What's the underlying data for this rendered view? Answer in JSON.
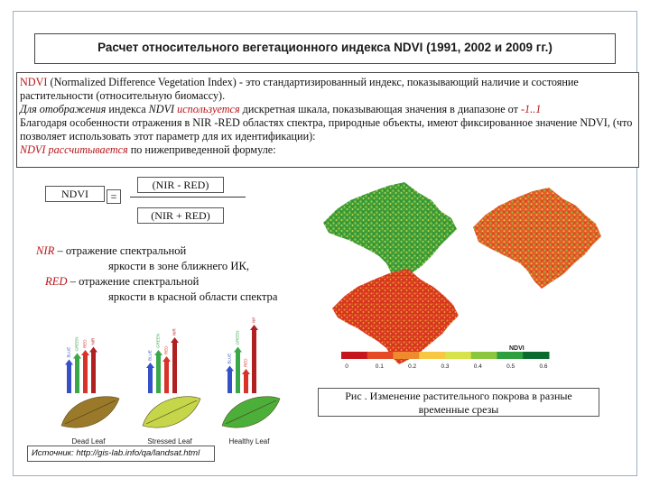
{
  "title": "Расчет относительного вегетационного индекса NDVI (1991,  2002 и 2009 гг.)",
  "definition": {
    "p1_ndvi": "NDVI",
    "p1_rest": " (Normalized Difference Vegetation Index) - это стандартизированный индекс, показывающий наличие и состояние растительности (относительную биомассу).",
    "p2_a": "Для отображения",
    "p2_b": " индекса ",
    "p2_c": "NDVI",
    "p2_d": "используется",
    "p2_e": " дискретная шкала, показывающая значения в диапазоне от ",
    "p2_f": "-1..1",
    "p3": "Благодаря особенности отражения в NIR -RED областях спектра, природные объекты, имеют фиксированное значение NDVI, (что позволяет использовать этот параметр для их идентификации):",
    "p4_a": "NDVI рассчитывается",
    "p4_b": " по нижеприведенной формуле:"
  },
  "formula": {
    "lhs": "NDVI",
    "equals": "=",
    "numerator": "(NIR - RED)",
    "denominator": "(NIR + RED)"
  },
  "legend_text": {
    "nir_term": "NIR",
    "nir_desc_1": " – отражение спектральной",
    "nir_desc_2": "яркости в зоне ближнего ИК,",
    "red_term": "RED",
    "red_desc_1": " – отражение спектральной",
    "red_desc_2": "яркости в красной области спектра"
  },
  "maps": {
    "scale_title": "NDVI",
    "scale_ticks": [
      "0",
      "0.1",
      "0.2",
      "0.3",
      "0.4",
      "0.5",
      "0.6"
    ],
    "scale_colors": [
      "#c4161c",
      "#e34a25",
      "#f08a2e",
      "#f7c744",
      "#d6e34a",
      "#8cc63f",
      "#2e9e3f",
      "#0b6b2e"
    ]
  },
  "leaves": {
    "labels": [
      "Dead Leaf",
      "Stressed Leaf",
      "Healthy Leaf"
    ],
    "colors": [
      "#9a7a2a",
      "#c6d64a",
      "#4caf3a"
    ],
    "bars": [
      {
        "label": "BLUE",
        "color": "#3550c8"
      },
      {
        "label": "GREEN",
        "color": "#38a84a"
      },
      {
        "label": "RED",
        "color": "#d8322a"
      },
      {
        "label": "NIR",
        "color": "#b02020"
      }
    ],
    "bar_levels": [
      [
        0.45,
        0.55,
        0.6,
        0.65
      ],
      [
        0.4,
        0.6,
        0.5,
        0.8
      ],
      [
        0.35,
        0.65,
        0.3,
        1.0
      ]
    ]
  },
  "caption": "Рис . Изменение растительного покрова в разные временные срезы",
  "source": "Источник: http://gis-lab.info/qa/landsat.html"
}
